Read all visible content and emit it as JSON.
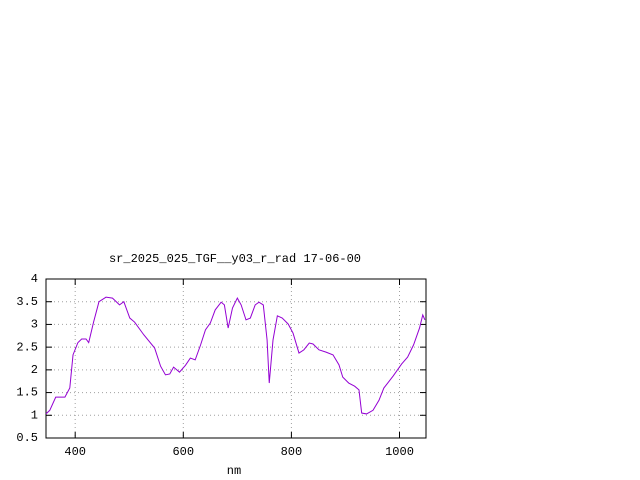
{
  "chart_data": {
    "type": "line",
    "title": "sr_2025_025_TGF__y03_r_rad 17-06-00",
    "x_label": "nm",
    "x": [
      346,
      353,
      364,
      381,
      390,
      396,
      405,
      412,
      420,
      425,
      434,
      444,
      457,
      469,
      482,
      490,
      501,
      510,
      527,
      547,
      558,
      567,
      575,
      582,
      593,
      604,
      613,
      622,
      632,
      641,
      650,
      659,
      670,
      676,
      683,
      691,
      700,
      707,
      716,
      724,
      733,
      740,
      748,
      755,
      759,
      766,
      774,
      783,
      794,
      803,
      814,
      823,
      833,
      840,
      851,
      864,
      877,
      888,
      895,
      906,
      917,
      925,
      930,
      939,
      951,
      962,
      971,
      988,
      1004,
      1015,
      1026,
      1037,
      1043,
      1047
    ],
    "series": [
      {
        "name": "sr_2025_025_TGF__y03_r_rad",
        "color": "#9400d3",
        "values": [
          1.03,
          1.11,
          1.4,
          1.4,
          1.6,
          2.33,
          2.6,
          2.68,
          2.68,
          2.6,
          3.05,
          3.5,
          3.6,
          3.58,
          3.43,
          3.5,
          3.14,
          3.05,
          2.77,
          2.48,
          2.08,
          1.89,
          1.91,
          2.06,
          1.95,
          2.1,
          2.26,
          2.22,
          2.55,
          2.88,
          3.03,
          3.32,
          3.49,
          3.43,
          2.92,
          3.36,
          3.58,
          3.43,
          3.1,
          3.14,
          3.43,
          3.49,
          3.43,
          2.66,
          1.71,
          2.66,
          3.19,
          3.14,
          3.01,
          2.81,
          2.37,
          2.44,
          2.59,
          2.57,
          2.44,
          2.39,
          2.33,
          2.11,
          1.84,
          1.71,
          1.64,
          1.56,
          1.05,
          1.03,
          1.11,
          1.33,
          1.6,
          1.86,
          2.13,
          2.28,
          2.55,
          2.92,
          3.21,
          3.1
        ]
      }
    ],
    "xlim": [
      346,
      1049
    ],
    "xticks": [
      400,
      600,
      800,
      1000
    ],
    "ylim": [
      0.5,
      4
    ],
    "yticks": [
      0.5,
      1,
      1.5,
      2,
      2.5,
      3,
      3.5,
      4
    ],
    "grid": true
  }
}
